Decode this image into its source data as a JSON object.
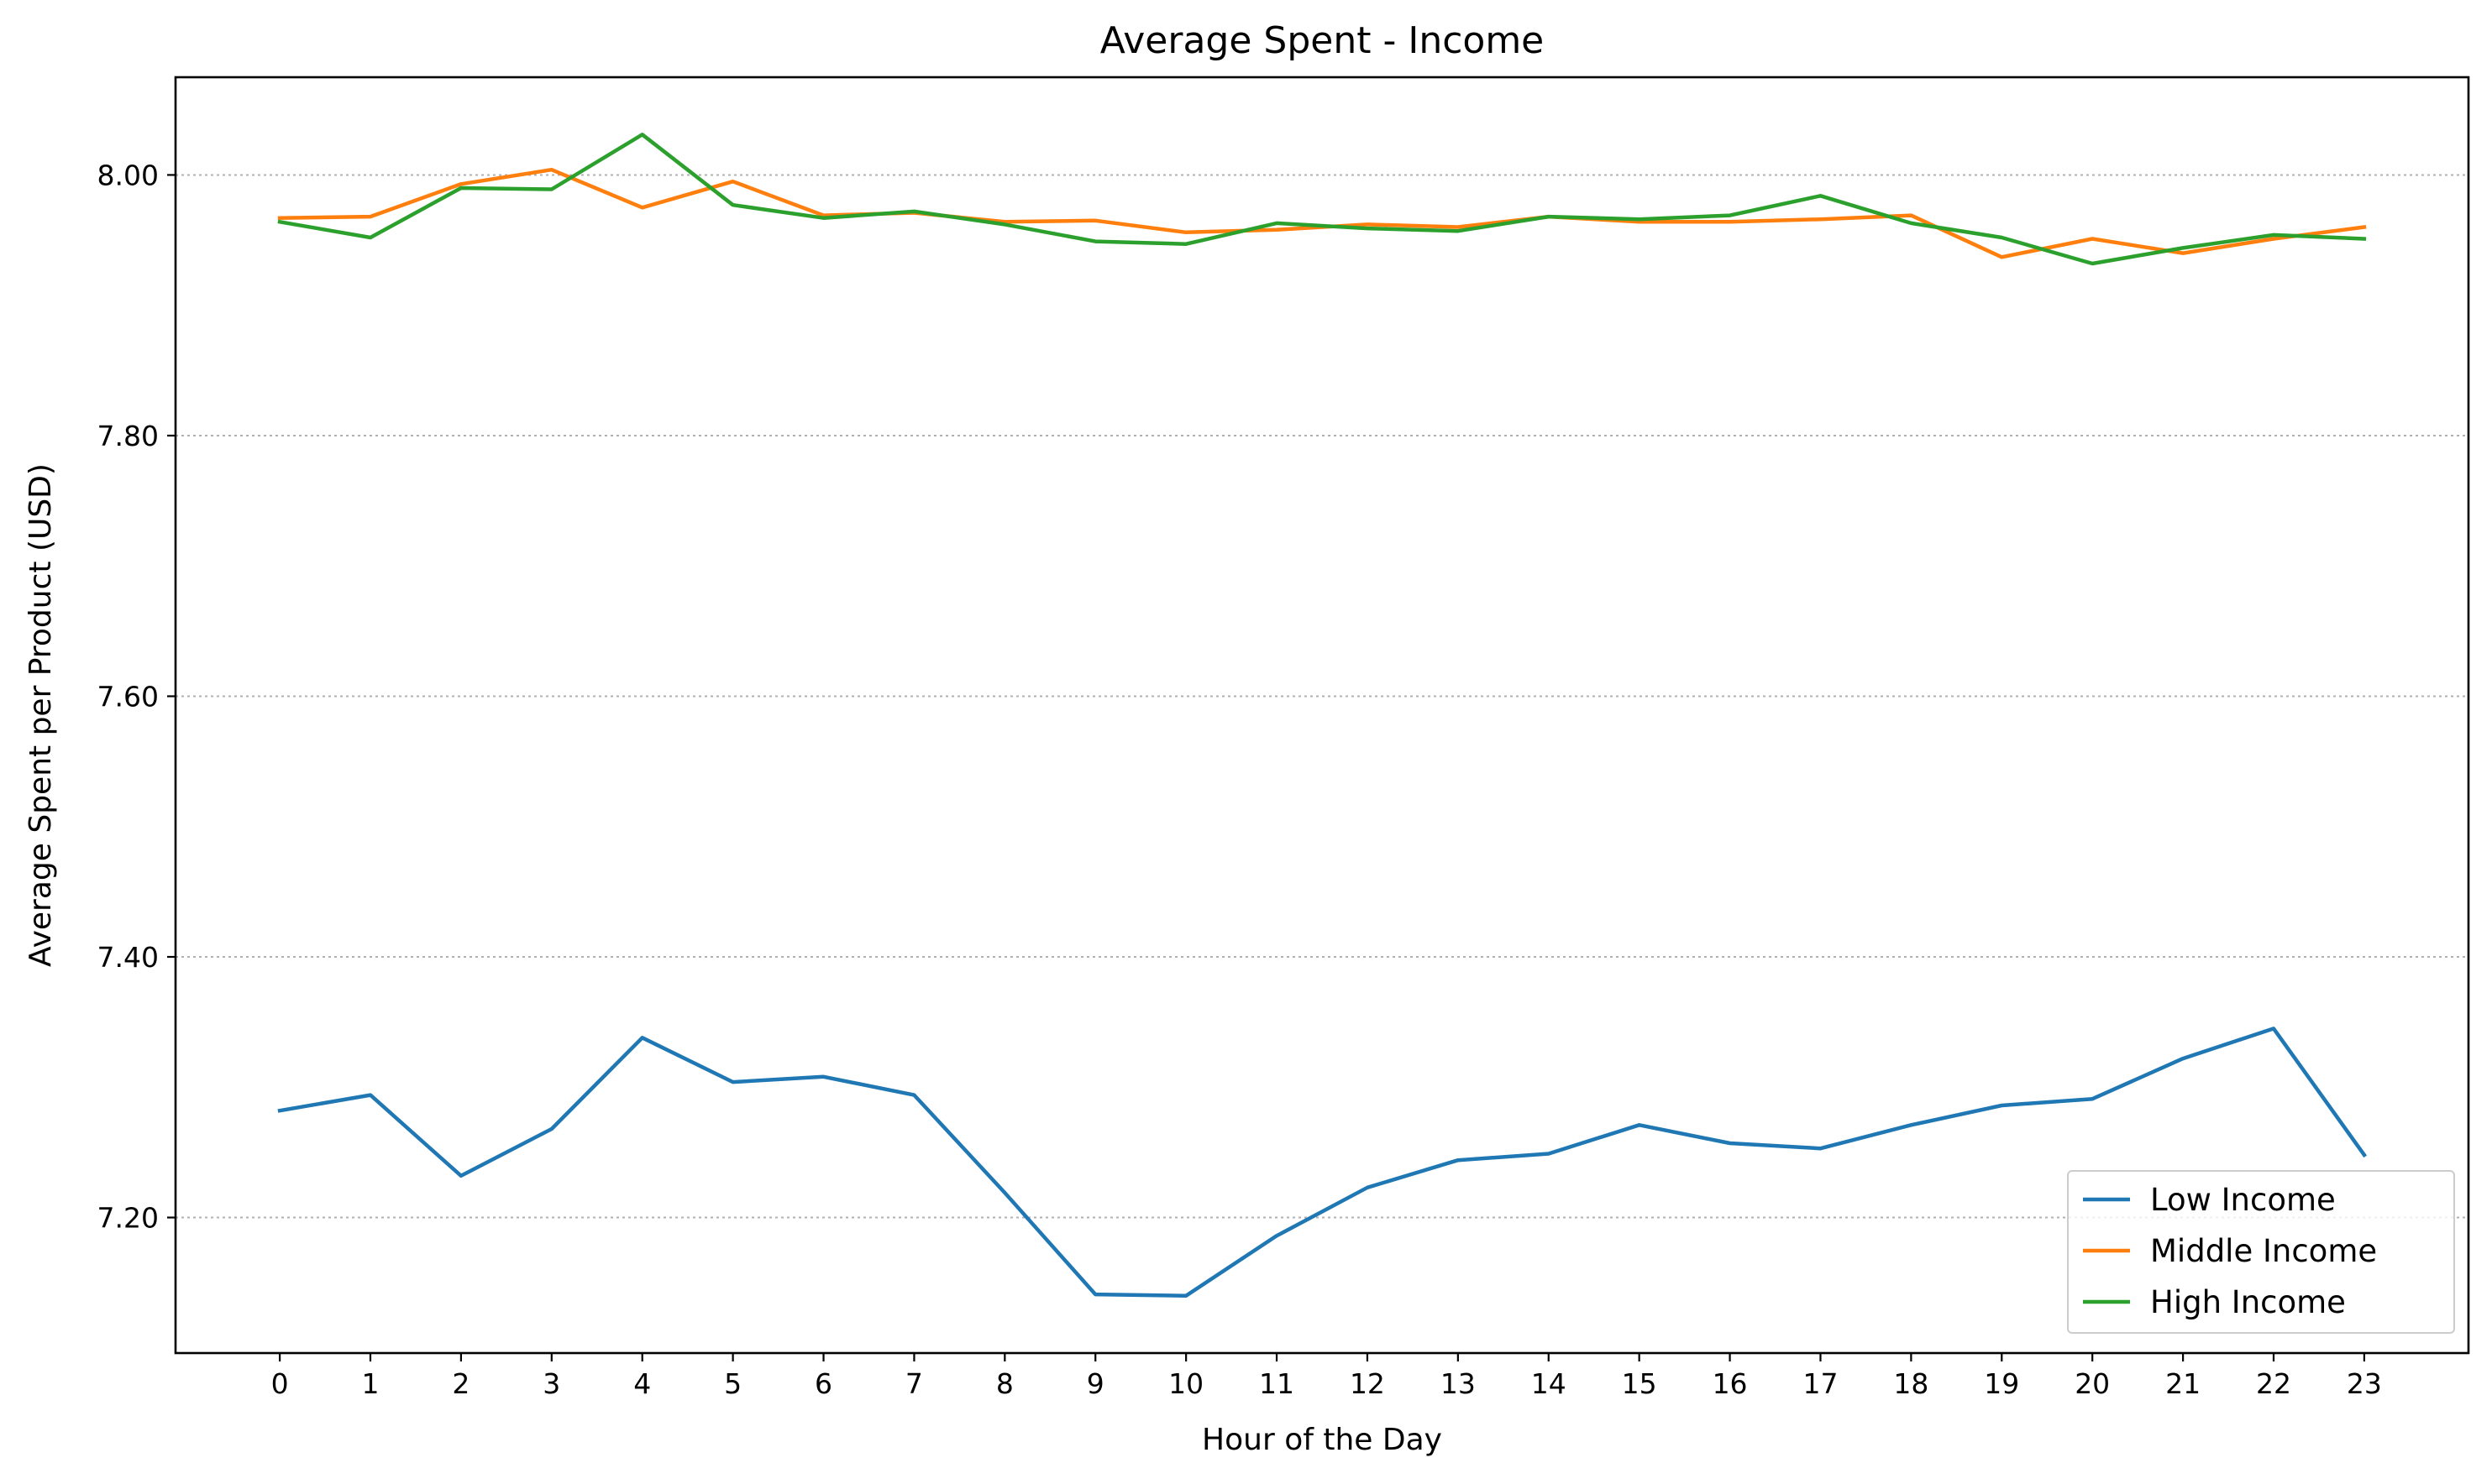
{
  "chart_data": {
    "type": "line",
    "title": "Average Spent - Income",
    "xlabel": "Hour of the Day",
    "ylabel": "Average Spent per Product (USD)",
    "x": [
      0,
      1,
      2,
      3,
      4,
      5,
      6,
      7,
      8,
      9,
      10,
      11,
      12,
      13,
      14,
      15,
      16,
      17,
      18,
      19,
      20,
      21,
      22,
      23
    ],
    "xticks": [
      "0",
      "1",
      "2",
      "3",
      "4",
      "5",
      "6",
      "7",
      "8",
      "9",
      "10",
      "11",
      "12",
      "13",
      "14",
      "15",
      "16",
      "17",
      "18",
      "19",
      "20",
      "21",
      "22",
      "23"
    ],
    "xlim": [
      -1.15,
      24.15
    ],
    "ylim": [
      7.096,
      8.075
    ],
    "yticks": [
      7.2,
      7.4,
      7.6,
      7.8,
      8.0
    ],
    "ytick_labels": [
      "7.20",
      "7.40",
      "7.60",
      "7.80",
      "8.00"
    ],
    "grid": "y-dotted",
    "legend_position": "lower-right",
    "series": [
      {
        "name": "Low Income",
        "color": "#1f77b4",
        "values": [
          7.282,
          7.294,
          7.232,
          7.268,
          7.338,
          7.304,
          7.308,
          7.294,
          7.219,
          7.141,
          7.14,
          7.186,
          7.223,
          7.244,
          7.249,
          7.271,
          7.257,
          7.253,
          7.271,
          7.286,
          7.291,
          7.322,
          7.345,
          7.248
        ]
      },
      {
        "name": "Middle Income",
        "color": "#ff7f0e",
        "values": [
          7.967,
          7.968,
          7.993,
          8.004,
          7.975,
          7.995,
          7.969,
          7.971,
          7.964,
          7.965,
          7.956,
          7.958,
          7.962,
          7.96,
          7.968,
          7.964,
          7.964,
          7.966,
          7.969,
          7.937,
          7.951,
          7.94,
          7.951,
          7.96
        ]
      },
      {
        "name": "High Income",
        "color": "#2ca02c",
        "values": [
          7.964,
          7.952,
          7.99,
          7.989,
          8.031,
          7.977,
          7.967,
          7.972,
          7.962,
          7.949,
          7.947,
          7.963,
          7.959,
          7.957,
          7.968,
          7.966,
          7.969,
          7.984,
          7.963,
          7.952,
          7.932,
          7.944,
          7.954,
          7.951
        ]
      }
    ]
  }
}
